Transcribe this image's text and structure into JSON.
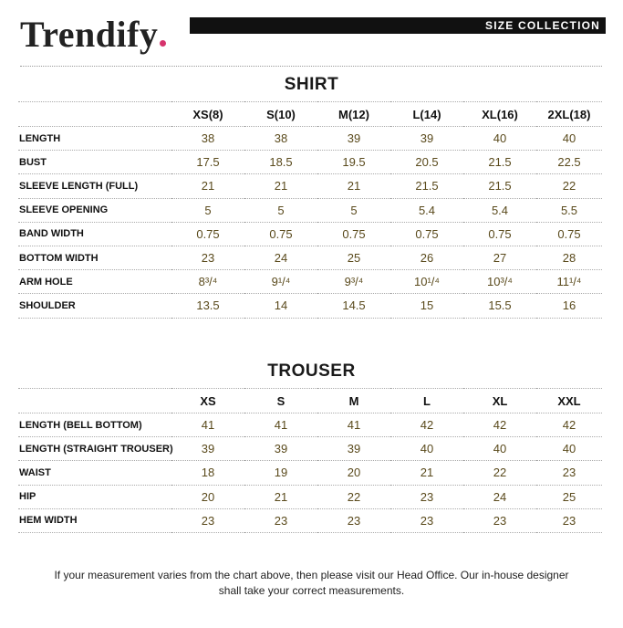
{
  "brand": {
    "name": "Trendify",
    "dot_color": "#d6336c"
  },
  "header": {
    "label": "SIZE COLLECTION"
  },
  "shirt": {
    "title": "SHIRT",
    "columns": [
      "XS(8)",
      "S(10)",
      "M(12)",
      "L(14)",
      "XL(16)",
      "2XL(18)"
    ],
    "rows": [
      {
        "label": "LENGTH",
        "values": [
          "38",
          "38",
          "39",
          "39",
          "40",
          "40"
        ]
      },
      {
        "label": "BUST",
        "values": [
          "17.5",
          "18.5",
          "19.5",
          "20.5",
          "21.5",
          "22.5"
        ]
      },
      {
        "label": "SLEEVE LENGTH (FULL)",
        "values": [
          "21",
          "21",
          "21",
          "21.5",
          "21.5",
          "22"
        ]
      },
      {
        "label": "SLEEVE OPENING",
        "values": [
          "5",
          "5",
          "5",
          "5.4",
          "5.4",
          "5.5"
        ]
      },
      {
        "label": "BAND WIDTH",
        "values": [
          "0.75",
          "0.75",
          "0.75",
          "0.75",
          "0.75",
          "0.75"
        ]
      },
      {
        "label": "BOTTOM WIDTH",
        "values": [
          "23",
          "24",
          "25",
          "26",
          "27",
          "28"
        ]
      },
      {
        "label": "ARM HOLE",
        "values": [
          "8³/⁴",
          "9¹/⁴",
          "9³/⁴",
          "10¹/⁴",
          "10³/⁴",
          "11¹/⁴"
        ]
      },
      {
        "label": "SHOULDER",
        "values": [
          "13.5",
          "14",
          "14.5",
          "15",
          "15.5",
          "16"
        ]
      }
    ]
  },
  "trouser": {
    "title": "TROUSER",
    "columns": [
      "XS",
      "S",
      "M",
      "L",
      "XL",
      "XXL"
    ],
    "rows": [
      {
        "label": "LENGTH (BELL BOTTOM)",
        "values": [
          "41",
          "41",
          "41",
          "42",
          "42",
          "42"
        ]
      },
      {
        "label": "LENGTH (STRAIGHT TROUSER)",
        "values": [
          "39",
          "39",
          "39",
          "40",
          "40",
          "40"
        ]
      },
      {
        "label": "WAIST",
        "values": [
          "18",
          "19",
          "20",
          "21",
          "22",
          "23"
        ]
      },
      {
        "label": "HIP",
        "values": [
          "20",
          "21",
          "22",
          "23",
          "24",
          "25"
        ]
      },
      {
        "label": "HEM WIDTH",
        "values": [
          "23",
          "23",
          "23",
          "23",
          "23",
          "23"
        ]
      }
    ]
  },
  "footer": {
    "line1": "If your measurement varies from the chart above, then please visit our Head Office. Our in-house designer",
    "line2": "shall take your correct measurements."
  }
}
